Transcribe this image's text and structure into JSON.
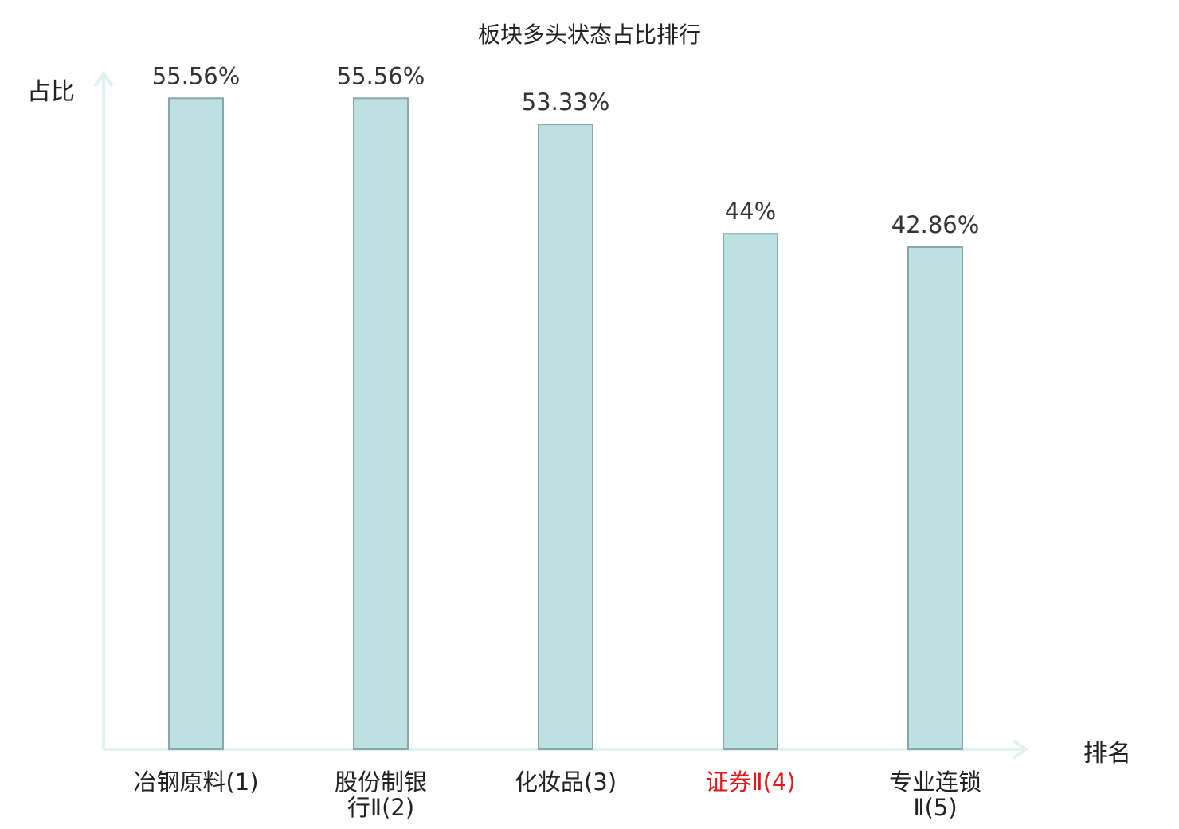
{
  "chart_data": {
    "type": "bar",
    "title": "板块多头状态占比排行",
    "ylabel": "占比",
    "xlabel": "排名",
    "ylim": [
      0,
      60
    ],
    "categories": [
      "冶钢原料(1)",
      "股份制银\n行Ⅱ(2)",
      "化妆品(3)",
      "证券Ⅱ(4)",
      "专业连锁\nⅡ(5)"
    ],
    "values": [
      55.56,
      55.56,
      53.33,
      44,
      42.86
    ],
    "value_labels": [
      "55.56%",
      "55.56%",
      "53.33%",
      "44%",
      "42.86%"
    ],
    "highlight_index": 3,
    "grid": false,
    "colors": {
      "bar_fill": "#bde1e3",
      "bar_stroke": "#8aa6a8",
      "axis": "#dff2f0",
      "highlight_text": "#e0191b",
      "text": "#222222"
    }
  }
}
